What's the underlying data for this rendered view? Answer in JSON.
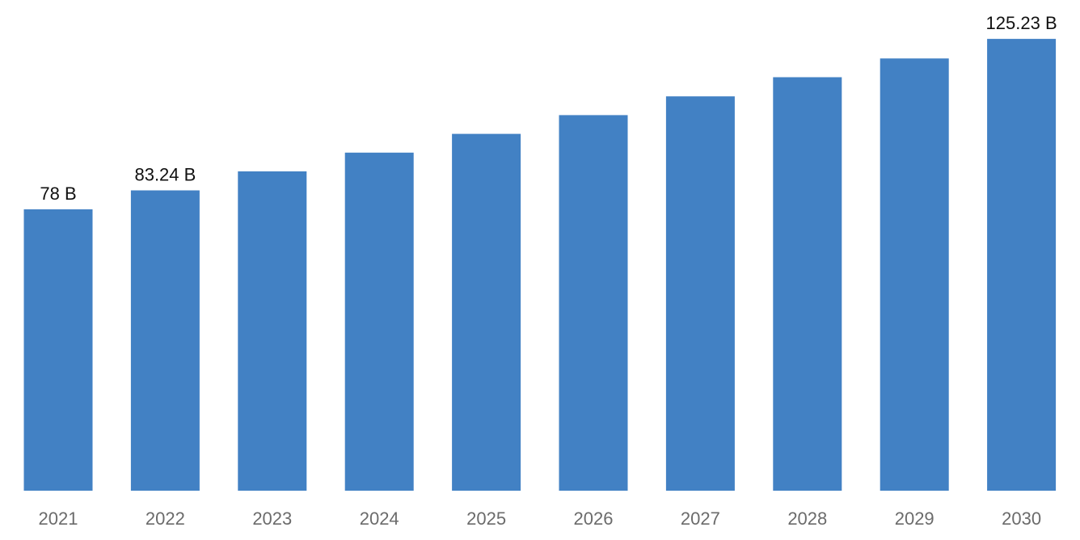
{
  "chart_data": {
    "type": "bar",
    "categories": [
      "2021",
      "2022",
      "2023",
      "2024",
      "2025",
      "2026",
      "2027",
      "2028",
      "2029",
      "2030"
    ],
    "values": [
      78,
      83.24,
      88.5,
      93.7,
      98.9,
      104.1,
      109.3,
      114.6,
      119.8,
      125.23
    ],
    "data_labels": [
      "78 B",
      "83.24 B",
      "",
      "",
      "",
      "",
      "",
      "",
      "",
      "125.23 B"
    ],
    "ylim": [
      0,
      136
    ],
    "bar_color": "#4281c4",
    "grid": false,
    "legend": false
  }
}
